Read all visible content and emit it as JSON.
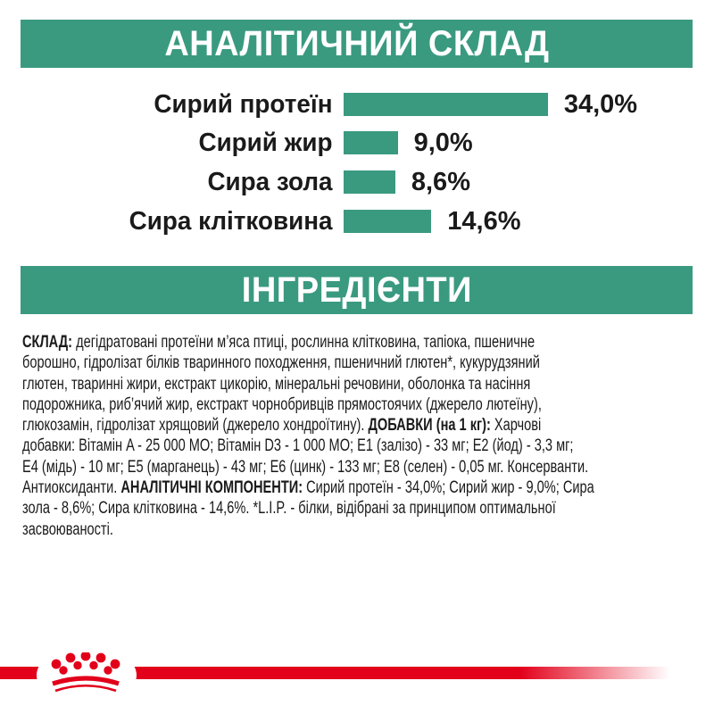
{
  "colors": {
    "teal": "#3A9A80",
    "red": "#E2001A",
    "text": "#1a1a1a",
    "banner_text": "#ffffff"
  },
  "sections": {
    "analytical": {
      "title": "АНАЛІТИЧНИЙ СКЛАД"
    },
    "ingredients": {
      "title": "ІНГРЕДІЄНТИ"
    }
  },
  "chart_data": {
    "type": "bar",
    "orientation": "horizontal",
    "title": "АНАЛІТИЧНИЙ СКЛАД",
    "categories": [
      "Сирий протеїн",
      "Сирий жир",
      "Сира зола",
      "Сира клітковина"
    ],
    "values": [
      34.0,
      9.0,
      8.6,
      14.6
    ],
    "value_labels": [
      "34,0%",
      "9,0%",
      "8,6%",
      "14,6%"
    ],
    "unit": "%",
    "xlim": [
      0,
      40
    ],
    "bar_color": "#3A9A80",
    "grid": false,
    "legend": false
  },
  "ingredients_text": {
    "lines": [
      [
        {
          "t": "СКЛАД:",
          "b": true
        },
        {
          "t": " дегідратовані протеїни м’яса птиці, рослинна клітковина, тапіока, пшеничне",
          "b": false
        }
      ],
      [
        {
          "t": "борошно, гідролізат білків тваринного походження, пшеничний глютен*, кукурудзяний",
          "b": false
        }
      ],
      [
        {
          "t": "глютен, тваринні жири, екстракт цикорію, мінеральні речовини, оболонка та насіння",
          "b": false
        }
      ],
      [
        {
          "t": "подорожника, риб’ячий жир, екстракт чорнобривців прямостоячих (джерело лютеїну),",
          "b": false
        }
      ],
      [
        {
          "t": "глюкозамін, гідролізат хрящовий (джерело хондроїтину). ",
          "b": false
        },
        {
          "t": "ДОБАВКИ (на 1 кг):",
          "b": true
        },
        {
          "t": " Харчові",
          "b": false
        }
      ],
      [
        {
          "t": "добавки: Вітамін A - 25 000 МО; Вітамін D3 - 1 000 МО; E1 (залізо) - 33 мг; E2 (йод) - 3,3 мг;",
          "b": false
        }
      ],
      [
        {
          "t": "E4 (мідь) - 10 мг; E5 (марганець) - 43 мг; E6 (цинк) - 133 мг; E8 (селен) - 0,05 мг. Консерванти.",
          "b": false
        }
      ],
      [
        {
          "t": "Антиоксиданти. ",
          "b": false
        },
        {
          "t": "АНАЛІТИЧНІ КОМПОНЕНТИ:",
          "b": true
        },
        {
          "t": " Сирий протеїн - 34,0%; Сирий жир - 9,0%; Сира",
          "b": false
        }
      ],
      [
        {
          "t": "зола - 8,6%; Сира клітковина - 14,6%. *L.I.P. - білки, відібрані за принципом оптимальної",
          "b": false
        }
      ],
      [
        {
          "t": "засвоюваності.",
          "b": false
        }
      ]
    ]
  },
  "footer": {
    "logo": "royal-canin-crown"
  }
}
